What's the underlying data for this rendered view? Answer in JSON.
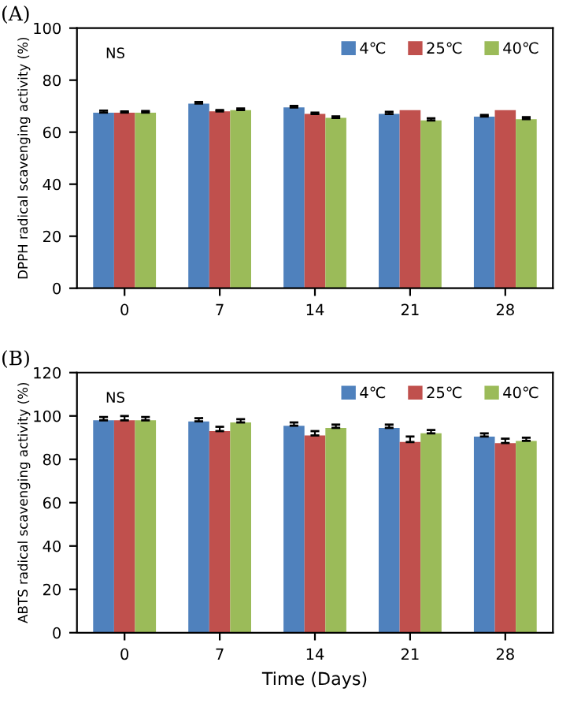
{
  "chart_data": [
    {
      "type": "bar",
      "ylabel": "DPPH radical scavenging activity (%)",
      "categories": [
        "0",
        "7",
        "14",
        "21",
        "28"
      ],
      "ylim": [
        0,
        100
      ],
      "yticks": [
        0,
        20,
        40,
        60,
        80,
        100
      ],
      "grid": false,
      "legend": "top right",
      "annotations": [
        "(A)",
        "NS"
      ],
      "series": [
        {
          "name": "4℃",
          "color": "#4f81bd",
          "values": [
            67.5,
            71,
            69.5,
            67,
            66
          ],
          "errors": [
            0.8,
            0.6,
            0.6,
            0.8,
            0.6
          ]
        },
        {
          "name": "25℃",
          "color": "#c0504d",
          "values": [
            67.5,
            68,
            67,
            68.5,
            68.5
          ],
          "errors": [
            0.5,
            0.5,
            0.5,
            null,
            null
          ]
        },
        {
          "name": "40℃",
          "color": "#9bbb59",
          "values": [
            67.5,
            68.5,
            65.5,
            64.5,
            65
          ],
          "errors": [
            0.6,
            0.6,
            0.6,
            0.8,
            0.8
          ]
        }
      ]
    },
    {
      "type": "bar",
      "ylabel": "ABTS radical scavenging activity (%)",
      "xlabel": "Time (Days)",
      "categories": [
        "0",
        "7",
        "14",
        "21",
        "28"
      ],
      "ylim": [
        0,
        120
      ],
      "yticks": [
        0,
        20,
        40,
        60,
        80,
        100,
        120
      ],
      "grid": false,
      "legend": "top right",
      "annotations": [
        "(B)",
        "NS"
      ],
      "series": [
        {
          "name": "4℃",
          "color": "#4f81bd",
          "values": [
            98,
            97.5,
            95.5,
            94.5,
            90.5
          ],
          "errors": [
            1.5,
            1.5,
            1.5,
            1.5,
            1.5
          ]
        },
        {
          "name": "25℃",
          "color": "#c0504d",
          "values": [
            98,
            93,
            91,
            88,
            87.5
          ],
          "errors": [
            2,
            2,
            2,
            2.5,
            2
          ]
        },
        {
          "name": "40℃",
          "color": "#9bbb59",
          "values": [
            98,
            97,
            94.5,
            92,
            88.5
          ],
          "errors": [
            1.5,
            1.5,
            1.5,
            1.5,
            1.5
          ]
        }
      ]
    }
  ]
}
